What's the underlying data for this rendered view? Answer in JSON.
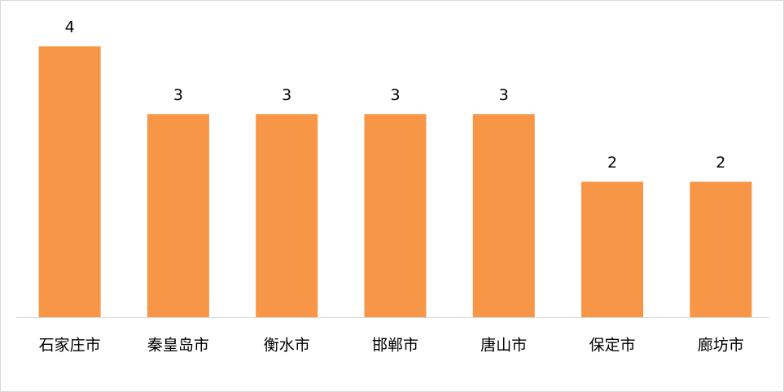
{
  "chart_data": {
    "type": "bar",
    "categories": [
      "石家庄市",
      "秦皇岛市",
      "衡水市",
      "邯郸市",
      "唐山市",
      "保定市",
      "廊坊市"
    ],
    "values": [
      4,
      3,
      3,
      3,
      3,
      2,
      2
    ],
    "color": "#f79646",
    "ylim": [
      0,
      4
    ]
  }
}
